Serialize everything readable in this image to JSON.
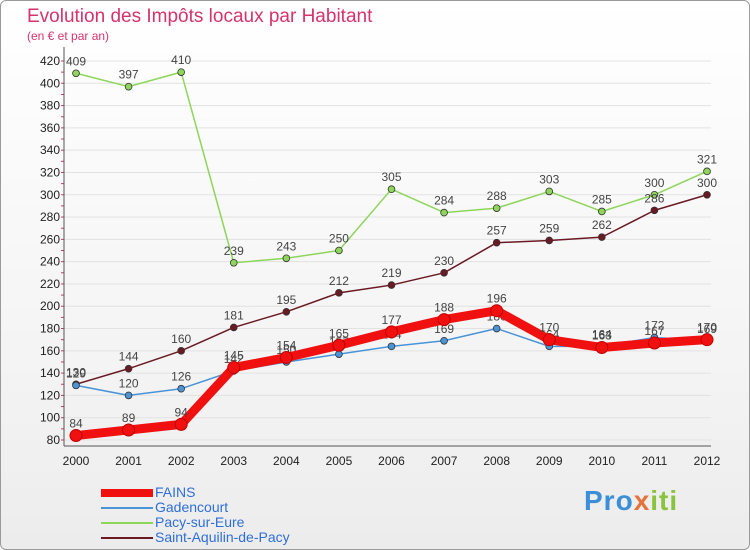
{
  "chart_data": {
    "type": "line",
    "title": "Evolution des Impôts locaux par Habitant",
    "subtitle": "(en € et par an)",
    "x": [
      "2000",
      "2001",
      "2002",
      "2003",
      "2004",
      "2005",
      "2006",
      "2007",
      "2008",
      "2009",
      "2010",
      "2011",
      "2012"
    ],
    "ylim": [
      80,
      420
    ],
    "yticks": [
      80,
      100,
      120,
      140,
      160,
      180,
      200,
      220,
      240,
      260,
      280,
      300,
      320,
      340,
      360,
      380,
      400,
      420
    ],
    "series": [
      {
        "name": "Pacy-sur-Eure",
        "color": "#8dd65a",
        "values": [
          409,
          397,
          410,
          239,
          243,
          250,
          305,
          284,
          288,
          303,
          285,
          300,
          321
        ]
      },
      {
        "name": "Saint-Aquilin-de-Pacy",
        "color": "#6b1a24",
        "values": [
          130,
          144,
          160,
          181,
          195,
          212,
          219,
          230,
          257,
          259,
          262,
          286,
          300
        ]
      },
      {
        "name": "Gadencourt",
        "color": "#4a93d6",
        "values": [
          129,
          120,
          126,
          142,
          150,
          157,
          164,
          169,
          180,
          164,
          164,
          172,
          169
        ]
      },
      {
        "name": "FAINS",
        "color": "#f01010",
        "values": [
          84,
          89,
          94,
          145,
          154,
          165,
          177,
          188,
          196,
          170,
          163,
          167,
          170
        ]
      }
    ]
  },
  "legend": [
    {
      "name": "FAINS",
      "color": "#f01010",
      "thick": true
    },
    {
      "name": "Gadencourt",
      "color": "#4a93d6",
      "thick": false
    },
    {
      "name": "Pacy-sur-Eure",
      "color": "#8dd65a",
      "thick": false
    },
    {
      "name": "Saint-Aquilin-de-Pacy",
      "color": "#6b1a24",
      "thick": false
    }
  ],
  "logo": {
    "part1": "Pro",
    "part2": "x",
    "part3": "iti"
  }
}
